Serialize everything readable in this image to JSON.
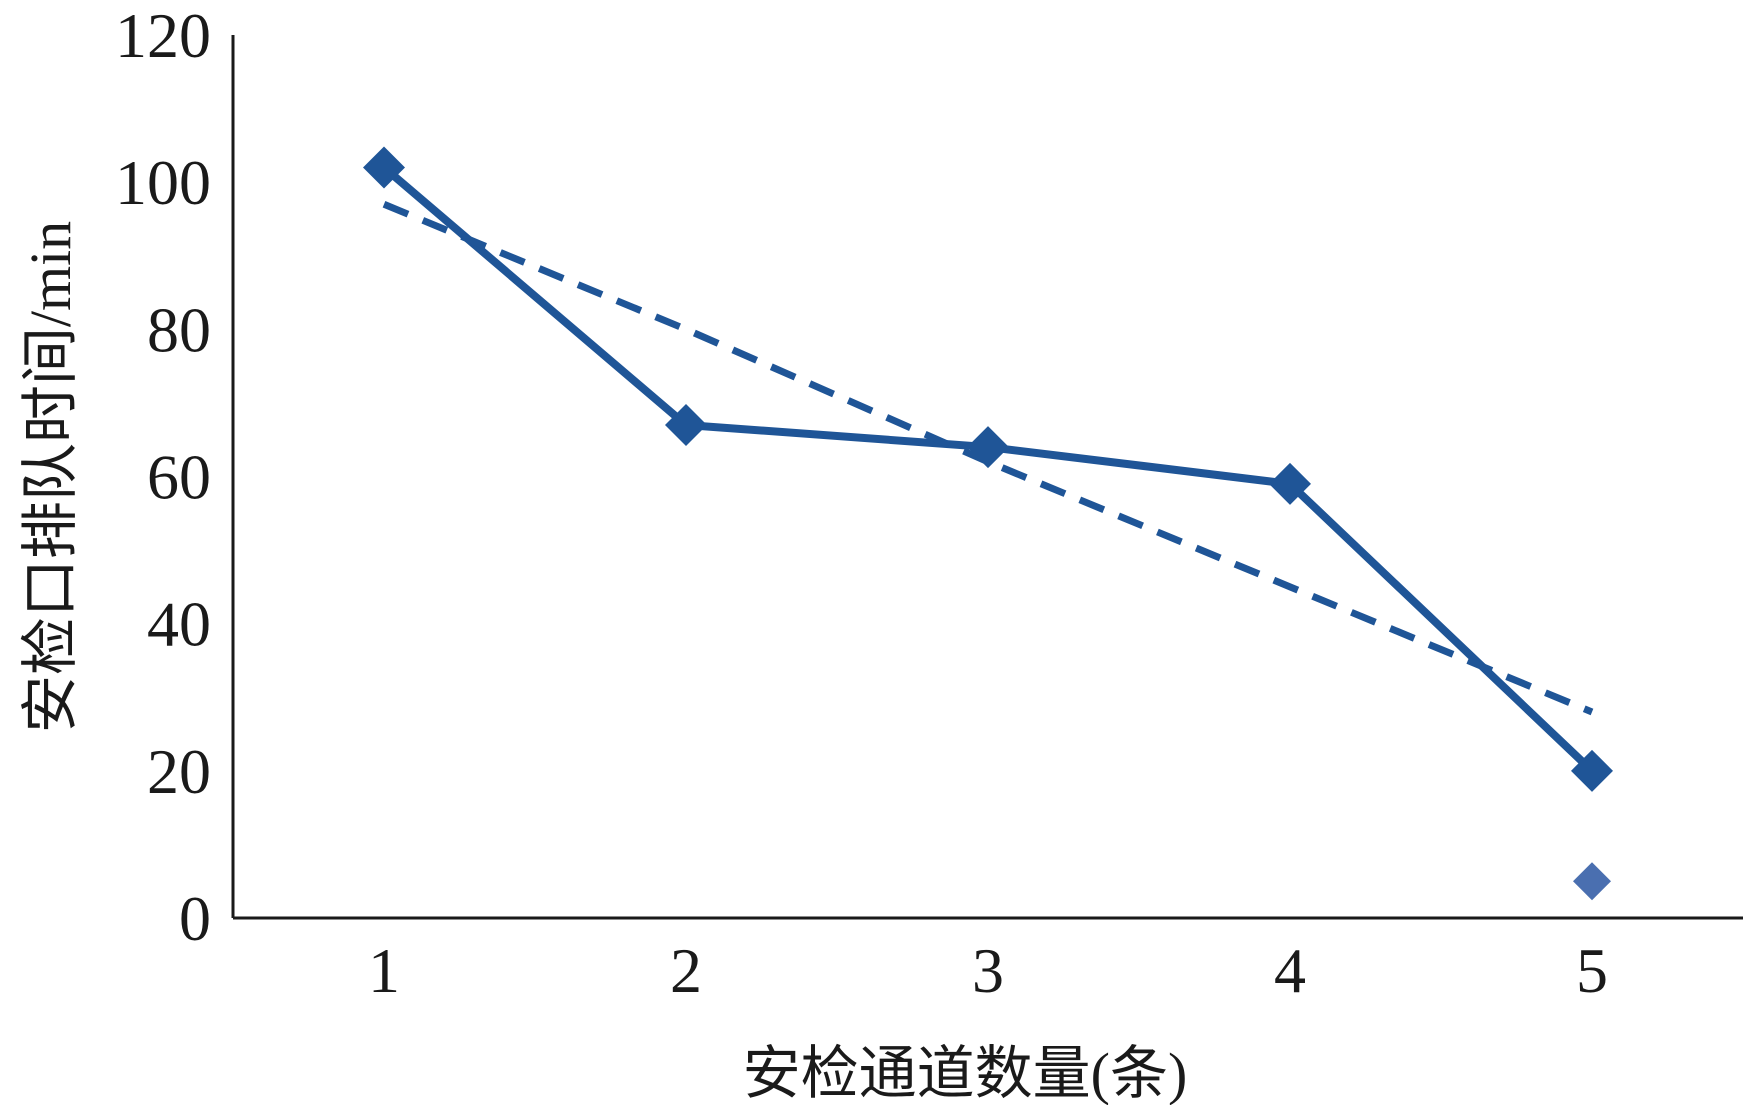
{
  "chart_data": {
    "type": "line",
    "title": "",
    "xlabel": "安检通道数量(条)",
    "ylabel": "安检口排队时间/min",
    "categories": [
      "1",
      "2",
      "3",
      "4",
      "5"
    ],
    "x": [
      1,
      2,
      3,
      4,
      5
    ],
    "xlim": [
      0.5,
      5.5
    ],
    "ylim": [
      0,
      120
    ],
    "yticks": [
      "0",
      "20",
      "40",
      "60",
      "80",
      "100",
      "120"
    ],
    "grid": false,
    "legend": "none",
    "series": [
      {
        "style": "solid",
        "marker": "diamond",
        "color": "#1f5597",
        "values": [
          102,
          67,
          64,
          59,
          20
        ]
      },
      {
        "style": "dashed",
        "marker": "none",
        "color": "#1f5597",
        "values": [
          97,
          80,
          62,
          45,
          28
        ]
      }
    ],
    "extra_points": [
      {
        "x": 5,
        "y": 5,
        "marker": "diamond",
        "color": "#4a6fb0"
      }
    ]
  }
}
